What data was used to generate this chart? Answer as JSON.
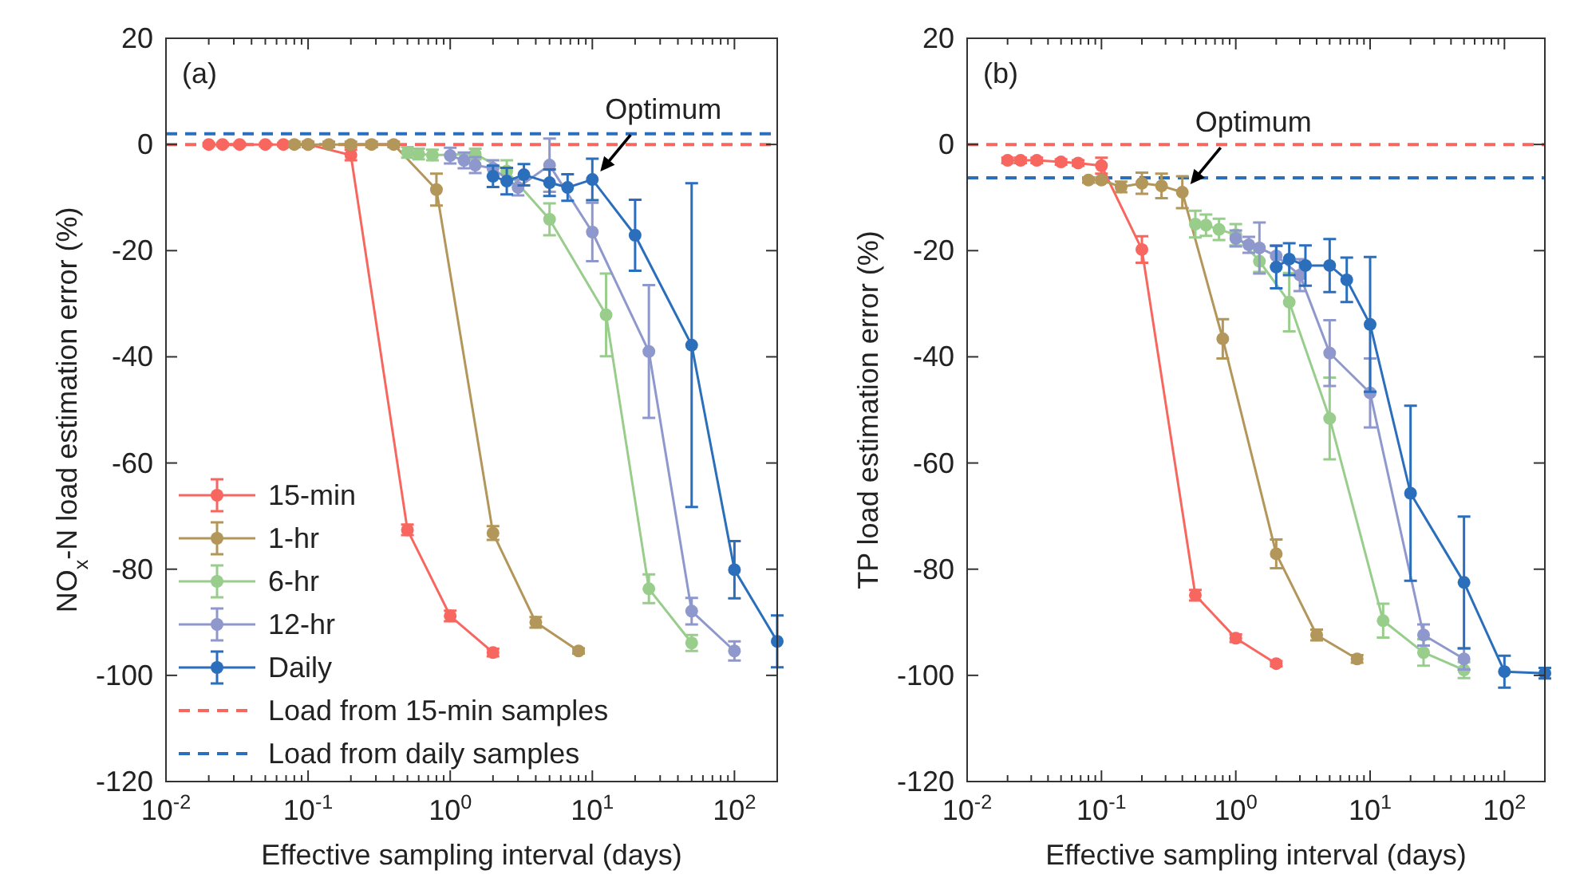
{
  "chart_data": [
    {
      "type": "line",
      "ylabel": "NO$_{x}$-N load estimation error (%)",
      "xlabel": "Effective sampling interval (days)",
      "log": "x",
      "marker": "circle",
      "line_style": "solid",
      "legend": "bottom left",
      "xlim": [
        0.01,
        200
      ],
      "ylim": [
        -120,
        20
      ],
      "yticks": [
        -120,
        -100,
        -80,
        -60,
        -40,
        -20,
        0,
        20
      ],
      "xticks": [
        {
          "value": 0.01,
          "label": "10$^{-2}$"
        },
        {
          "value": 0.02,
          "label": null
        },
        {
          "value": 0.03,
          "label": null
        },
        {
          "value": 0.04,
          "label": null
        },
        {
          "value": 0.05,
          "label": null
        },
        {
          "value": 0.06,
          "label": null
        },
        {
          "value": 0.07,
          "label": null
        },
        {
          "value": 0.08,
          "label": null
        },
        {
          "value": 0.09,
          "label": null
        },
        {
          "value": 0.1,
          "label": "10$^{-1}$"
        },
        {
          "value": 0.2,
          "label": null
        },
        {
          "value": 0.3,
          "label": null
        },
        {
          "value": 0.4,
          "label": null
        },
        {
          "value": 0.5,
          "label": null
        },
        {
          "value": 0.6,
          "label": null
        },
        {
          "value": 0.7,
          "label": null
        },
        {
          "value": 0.8,
          "label": null
        },
        {
          "value": 0.9,
          "label": null
        },
        {
          "value": 1,
          "label": "10$^{0}$"
        },
        {
          "value": 2,
          "label": null
        },
        {
          "value": 3,
          "label": null
        },
        {
          "value": 4,
          "label": null
        },
        {
          "value": 5,
          "label": null
        },
        {
          "value": 6,
          "label": null
        },
        {
          "value": 7,
          "label": null
        },
        {
          "value": 8,
          "label": null
        },
        {
          "value": 9,
          "label": null
        },
        {
          "value": 10,
          "label": "10$^{1}$"
        },
        {
          "value": 20,
          "label": null
        },
        {
          "value": 30,
          "label": null
        },
        {
          "value": 40,
          "label": null
        },
        {
          "value": 50,
          "label": null
        },
        {
          "value": 60,
          "label": null
        },
        {
          "value": 70,
          "label": null
        },
        {
          "value": 80,
          "label": null
        },
        {
          "value": 90,
          "label": null
        },
        {
          "value": 100,
          "label": "10$^{2}$"
        }
      ],
      "series": [
        {
          "name": "15-min",
          "color": "#f8675f",
          "x": [
            0.02,
            0.025,
            0.033,
            0.05,
            0.067,
            0.1,
            0.2,
            0.5,
            1,
            2
          ],
          "values": [
            0,
            0,
            0,
            0,
            0,
            0,
            -2,
            -72.6,
            -88.8,
            -95.7
          ],
          "errors": [
            0.3,
            0.3,
            0.3,
            0.3,
            0.3,
            0.3,
            1,
            1,
            1,
            0.7
          ]
        },
        {
          "name": "1-hr",
          "color": "#b39659",
          "x": [
            0.08,
            0.1,
            0.14,
            0.2,
            0.28,
            0.4,
            0.8,
            2,
            4,
            8
          ],
          "values": [
            0,
            0,
            0,
            0,
            0,
            0,
            -8.5,
            -73.2,
            -90,
            -95.4
          ],
          "errors": [
            0.5,
            0.5,
            0.5,
            0.5,
            0.5,
            0.5,
            3,
            1.3,
            1,
            0.5
          ]
        },
        {
          "name": "6-hr",
          "color": "#98cd8c",
          "x": [
            0.5,
            0.6,
            0.75,
            1,
            1.5,
            2.5,
            5,
            12.5,
            25,
            50
          ],
          "values": [
            -1.5,
            -1.8,
            -2,
            null,
            -1.8,
            -5,
            -14.1,
            -32.1,
            -83.7,
            -93.9
          ],
          "errors": [
            1,
            1,
            1,
            null,
            1,
            2,
            3,
            7.8,
            2.7,
            1.5
          ]
        },
        {
          "name": "12-hr",
          "color": "#8f98cc",
          "x": [
            1,
            1.25,
            1.5,
            2,
            3,
            5,
            10,
            25,
            50,
            100
          ],
          "values": [
            -2.1,
            -3,
            -3.9,
            -4.5,
            -8.1,
            -3.9,
            -16.5,
            -39,
            -87.9,
            -95.4
          ],
          "errors": [
            1.5,
            1.5,
            1.5,
            1.5,
            1.5,
            5,
            5.5,
            12.5,
            2.5,
            1.8
          ]
        },
        {
          "name": "Daily",
          "color": "#2b6fbc",
          "x": [
            2,
            2.5,
            3.3,
            5,
            6.7,
            10,
            20,
            50,
            100,
            200
          ],
          "values": [
            -6,
            -6.9,
            -5.7,
            -7.2,
            -8.1,
            -6.6,
            -17.1,
            -37.8,
            -80.1,
            -93.6
          ],
          "errors": [
            2,
            2.5,
            2,
            2.5,
            2.5,
            3.9,
            6.7,
            30.5,
            5.4,
            4.9
          ]
        }
      ],
      "ref_lines": [
        {
          "axis": "y",
          "value": 0,
          "label": "Load from 15-min samples",
          "color": "#f8675f",
          "line_style": "dashed"
        },
        {
          "axis": "y",
          "value": 2,
          "label": "Load from daily samples",
          "color": "#2b6fbc",
          "line_style": "dashed"
        }
      ],
      "annotations": [
        "(a)",
        {
          "text": "Optimum",
          "x": 10,
          "y": -6.6
        }
      ]
    },
    {
      "type": "line",
      "ylabel": "TP load estimation error (%)",
      "xlabel": "Effective sampling interval (days)",
      "log": "x",
      "marker": "circle",
      "line_style": "solid",
      "xlim": [
        0.01,
        200
      ],
      "ylim": [
        -120,
        20
      ],
      "yticks": [
        -120,
        -100,
        -80,
        -60,
        -40,
        -20,
        0,
        20
      ],
      "xticks": [
        {
          "value": 0.01,
          "label": "10$^{-2}$"
        },
        {
          "value": 0.02,
          "label": null
        },
        {
          "value": 0.03,
          "label": null
        },
        {
          "value": 0.04,
          "label": null
        },
        {
          "value": 0.05,
          "label": null
        },
        {
          "value": 0.06,
          "label": null
        },
        {
          "value": 0.07,
          "label": null
        },
        {
          "value": 0.08,
          "label": null
        },
        {
          "value": 0.09,
          "label": null
        },
        {
          "value": 0.1,
          "label": "10$^{-1}$"
        },
        {
          "value": 0.2,
          "label": null
        },
        {
          "value": 0.3,
          "label": null
        },
        {
          "value": 0.4,
          "label": null
        },
        {
          "value": 0.5,
          "label": null
        },
        {
          "value": 0.6,
          "label": null
        },
        {
          "value": 0.7,
          "label": null
        },
        {
          "value": 0.8,
          "label": null
        },
        {
          "value": 0.9,
          "label": null
        },
        {
          "value": 1,
          "label": "10$^{0}$"
        },
        {
          "value": 2,
          "label": null
        },
        {
          "value": 3,
          "label": null
        },
        {
          "value": 4,
          "label": null
        },
        {
          "value": 5,
          "label": null
        },
        {
          "value": 6,
          "label": null
        },
        {
          "value": 7,
          "label": null
        },
        {
          "value": 8,
          "label": null
        },
        {
          "value": 9,
          "label": null
        },
        {
          "value": 10,
          "label": "10$^{1}$"
        },
        {
          "value": 20,
          "label": null
        },
        {
          "value": 30,
          "label": null
        },
        {
          "value": 40,
          "label": null
        },
        {
          "value": 50,
          "label": null
        },
        {
          "value": 60,
          "label": null
        },
        {
          "value": 70,
          "label": null
        },
        {
          "value": 80,
          "label": null
        },
        {
          "value": 90,
          "label": null
        },
        {
          "value": 100,
          "label": "10$^{2}$"
        }
      ],
      "series": [
        {
          "color": "#f8675f",
          "x": [
            0.02,
            0.025,
            0.033,
            0.05,
            0.067,
            0.1,
            0.2,
            0.5,
            1,
            2
          ],
          "values": [
            -3,
            -3,
            -3,
            -3.3,
            -3.5,
            -4,
            -19.8,
            -84.9,
            -93,
            -97.8
          ],
          "errors": [
            0.5,
            0.5,
            0.5,
            0.5,
            0.5,
            1.5,
            2.5,
            1,
            0.7,
            0.5
          ]
        },
        {
          "color": "#b39659",
          "x": [
            0.08,
            0.1,
            0.14,
            0.2,
            0.28,
            0.4,
            0.8,
            2,
            4,
            8
          ],
          "values": [
            -6.7,
            -6.7,
            -8,
            -7.3,
            -7.8,
            -9,
            -36.6,
            -77.1,
            -92.4,
            -96.9
          ],
          "errors": [
            0.5,
            0.5,
            1,
            2,
            2.3,
            3,
            3.7,
            2.7,
            1,
            0.7
          ]
        },
        {
          "color": "#98cd8c",
          "x": [
            0.5,
            0.6,
            0.75,
            1,
            1.5,
            2.5,
            5,
            12.5,
            25,
            50
          ],
          "values": [
            -15,
            -15.2,
            -16,
            -17,
            -22,
            -29.7,
            -51.6,
            -89.7,
            -95.7,
            -99
          ],
          "errors": [
            2.5,
            2,
            2,
            2,
            2,
            5.5,
            7.7,
            3.2,
            2.5,
            1.5
          ]
        },
        {
          "color": "#8f98cc",
          "x": [
            1,
            1.25,
            1.5,
            2,
            3,
            5,
            10,
            25,
            50
          ],
          "values": [
            -17.7,
            -18.9,
            -19.5,
            -21,
            -24.6,
            -39.3,
            -46.8,
            -92.4,
            -96.9
          ],
          "errors": [
            1.5,
            1.5,
            4.8,
            2,
            3,
            6.2,
            6.5,
            2,
            2
          ]
        },
        {
          "color": "#2b6fbc",
          "x": [
            2,
            2.5,
            3.3,
            5,
            6.7,
            10,
            20,
            50,
            100,
            200
          ],
          "values": [
            -23.1,
            -21.6,
            -22.8,
            -22.8,
            -25.5,
            -33.9,
            -65.7,
            -82.5,
            -99.3,
            -99.6
          ],
          "errors": [
            4,
            3,
            3.8,
            5,
            4.2,
            12.7,
            16.5,
            12.4,
            3,
            1
          ]
        }
      ],
      "ref_lines": [
        {
          "axis": "y",
          "value": 0,
          "color": "#f8675f",
          "line_style": "dashed"
        },
        {
          "axis": "y",
          "value": -6.3,
          "color": "#2b6fbc",
          "line_style": "dashed"
        }
      ],
      "annotations": [
        "(b)",
        {
          "text": "Optimum",
          "x": 0.4,
          "y": -9
        }
      ]
    }
  ]
}
